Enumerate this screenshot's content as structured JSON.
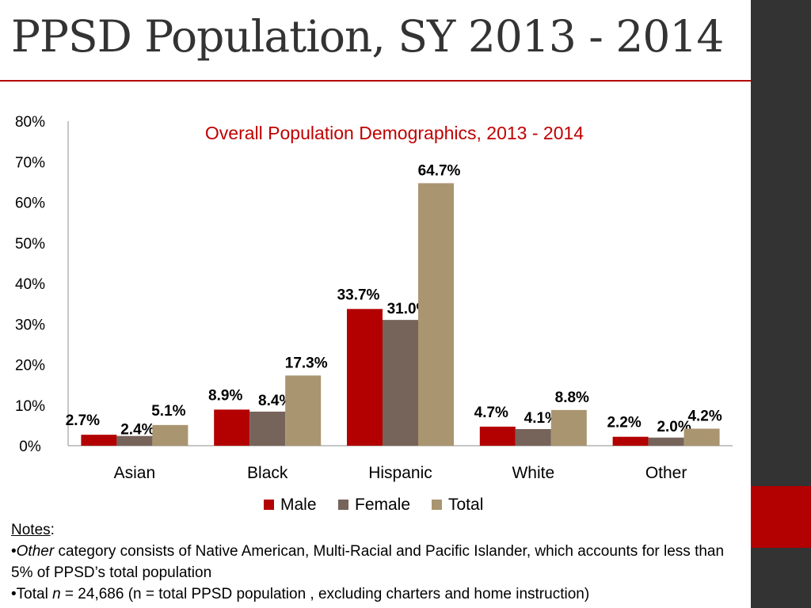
{
  "slide": {
    "title": "PPSD Population, SY 2013 - 2014"
  },
  "colors": {
    "male": "#b30000",
    "female": "#76635a",
    "total": "#a99570",
    "title_rule": "#b30000",
    "sidebar": "#333333",
    "chart_title": "#c00000"
  },
  "chart_data": {
    "type": "bar",
    "title": "Overall Population Demographics, 2013 - 2014",
    "categories": [
      "Asian",
      "Black",
      "Hispanic",
      "White",
      "Other"
    ],
    "series": [
      {
        "name": "Male",
        "values": [
          2.7,
          8.9,
          33.7,
          4.7,
          2.2
        ],
        "labels": [
          "2.7%",
          "8.9%",
          "33.7%",
          "4.7%",
          "2.2%"
        ]
      },
      {
        "name": "Female",
        "values": [
          2.4,
          8.4,
          31.0,
          4.1,
          2.0
        ],
        "labels": [
          "2.4%",
          "8.4%",
          "31.0%",
          "4.1%",
          "2.0%"
        ]
      },
      {
        "name": "Total",
        "values": [
          5.1,
          17.3,
          64.7,
          8.8,
          4.2
        ],
        "labels": [
          "5.1%",
          "17.3%",
          "64.7%",
          "8.8%",
          "4.2%"
        ]
      }
    ],
    "ylim": [
      0,
      80
    ],
    "yticks": [
      "0%",
      "10%",
      "20%",
      "30%",
      "40%",
      "50%",
      "60%",
      "70%",
      "80%"
    ],
    "grid": false,
    "legend": "bottom"
  },
  "notes": {
    "heading": "Notes",
    "heading_suffix": ":",
    "bullet1_italic": "Other",
    "bullet1_rest": " category consists of Native American, Multi-Racial and Pacific Islander, which accounts for less than 5% of PPSD’s total population",
    "bullet2_prefix": "Total ",
    "bullet2_italic": "n",
    "bullet2_rest": " = 24,686 (n = total PPSD population , excluding charters and home instruction)"
  }
}
